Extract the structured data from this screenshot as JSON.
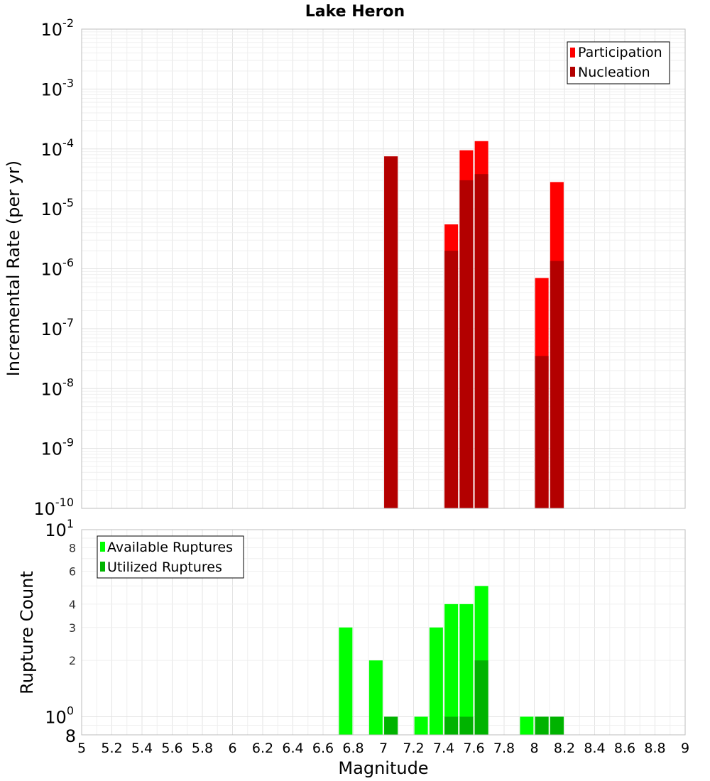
{
  "colors": {
    "participation": "#ff0000",
    "nucleation": "#b30000",
    "available": "#00ff00",
    "utilized": "#00b300"
  },
  "chart_data": [
    {
      "type": "bar",
      "title": "Lake Heron",
      "xlabel": "",
      "ylabel": "Incremental Rate (per yr)",
      "xlim": [
        5,
        9
      ],
      "ylim": [
        1e-10,
        0.01
      ],
      "yscale": "log",
      "grid": true,
      "legend_position": "top-right",
      "y_tick_exponents": [
        "-2",
        "-3",
        "-4",
        "-5",
        "-6",
        "-7",
        "-8",
        "-9",
        "-10"
      ],
      "y_tick_base": "10",
      "series": [
        {
          "name": "Participation",
          "x": [
            7.05,
            7.45,
            7.55,
            7.65,
            8.05,
            8.15
          ],
          "values": [
            7.5e-05,
            5.5e-06,
            9.5e-05,
            0.000135,
            7e-07,
            2.8e-05
          ]
        },
        {
          "name": "Nucleation",
          "x": [
            7.05,
            7.45,
            7.55,
            7.65,
            8.05,
            8.15
          ],
          "values": [
            7.5e-05,
            2e-06,
            3e-05,
            3.8e-05,
            3.5e-08,
            1.35e-06
          ]
        }
      ]
    },
    {
      "type": "bar",
      "title": "",
      "xlabel": "Magnitude",
      "ylabel": "Rupture Count",
      "xlim": [
        5,
        9
      ],
      "ylim": [
        0.8,
        10
      ],
      "yscale": "log",
      "grid": true,
      "legend_position": "top-left",
      "x_ticks": [
        "5",
        "5.2",
        "5.4",
        "5.6",
        "5.8",
        "6",
        "6.2",
        "6.4",
        "6.6",
        "6.8",
        "7",
        "7.2",
        "7.4",
        "7.6",
        "7.8",
        "8",
        "8.2",
        "8.4",
        "8.6",
        "8.8",
        "9"
      ],
      "y_major_ticks": [
        {
          "value": 10,
          "base": "10",
          "exp": "1"
        },
        {
          "value": 1,
          "base": "10",
          "exp": "0"
        }
      ],
      "y_minor_ticks": [
        "8",
        "6",
        "4",
        "3",
        "2"
      ],
      "y_bottom_tick": "8",
      "series": [
        {
          "name": "Available Ruptures",
          "x": [
            6.75,
            6.95,
            7.05,
            7.25,
            7.35,
            7.45,
            7.55,
            7.65,
            7.95,
            8.05,
            8.15
          ],
          "values": [
            3,
            2,
            1,
            1,
            3,
            4,
            4,
            5,
            1,
            1,
            1
          ]
        },
        {
          "name": "Utilized Ruptures",
          "x": [
            7.05,
            7.45,
            7.55,
            7.65,
            8.05,
            8.15
          ],
          "values": [
            1,
            1,
            1,
            2,
            1,
            1
          ]
        }
      ]
    }
  ]
}
